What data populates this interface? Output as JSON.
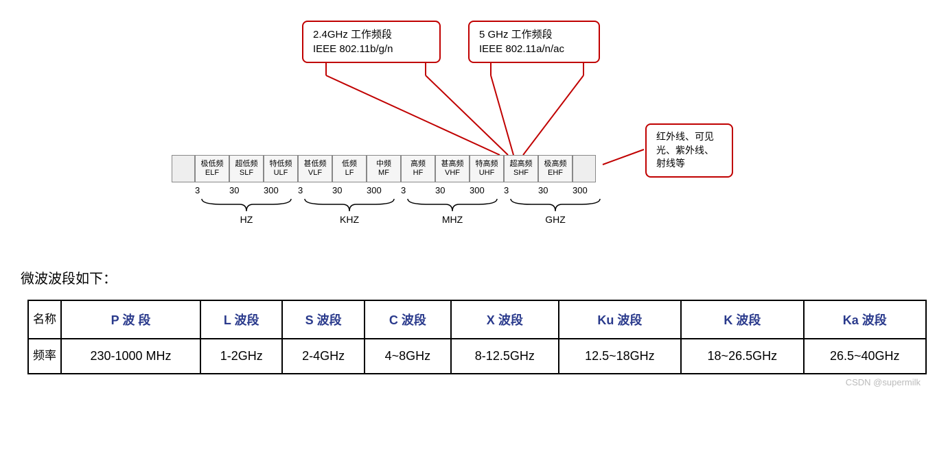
{
  "diagram": {
    "callout_24": {
      "line1": "2.4GHz 工作频段",
      "line2": "IEEE 802.11b/g/n"
    },
    "callout_5": {
      "line1": "5 GHz 工作频段",
      "line2": "IEEE 802.11a/n/ac"
    },
    "callout_right": {
      "text": "红外线、可见光、紫外线、射线等"
    },
    "bands": [
      {
        "cn": "",
        "en": ""
      },
      {
        "cn": "极低频",
        "en": "ELF"
      },
      {
        "cn": "超低频",
        "en": "SLF"
      },
      {
        "cn": "特低频",
        "en": "ULF"
      },
      {
        "cn": "甚低频",
        "en": "VLF"
      },
      {
        "cn": "低频",
        "en": "LF"
      },
      {
        "cn": "中频",
        "en": "MF"
      },
      {
        "cn": "高频",
        "en": "HF"
      },
      {
        "cn": "甚高频",
        "en": "VHF"
      },
      {
        "cn": "特高频",
        "en": "UHF"
      },
      {
        "cn": "超高频",
        "en": "SHF"
      },
      {
        "cn": "极高频",
        "en": "EHF"
      },
      {
        "cn": "",
        "en": ""
      }
    ],
    "ticks": [
      "3",
      "30",
      "300",
      "3",
      "30",
      "300",
      "3",
      "30",
      "300",
      "3",
      "30",
      "300"
    ],
    "units": [
      "HZ",
      "KHZ",
      "MHZ",
      "GHZ"
    ],
    "line_color": "#c00000",
    "cell_bg": "#f5f5f5",
    "cell_border": "#888888"
  },
  "heading": "微波波段如下：",
  "table": {
    "row_name": "名称",
    "row_freq": "频率",
    "header_color": "#2a3a8c",
    "bands": [
      {
        "letter": "P",
        "suffix": " 波  段",
        "freq": "230-1000 MHz"
      },
      {
        "letter": "L",
        "suffix": " 波段",
        "freq": "1-2GHz"
      },
      {
        "letter": "S",
        "suffix": " 波段",
        "freq": "2-4GHz"
      },
      {
        "letter": "C",
        "suffix": " 波段",
        "freq": "4~8GHz"
      },
      {
        "letter": "X",
        "suffix": " 波段",
        "freq": "8-12.5GHz"
      },
      {
        "letter": "Ku",
        "suffix": " 波段",
        "freq": "12.5~18GHz"
      },
      {
        "letter": "K",
        "suffix": " 波段",
        "freq": "18~26.5GHz"
      },
      {
        "letter": "Ka",
        "suffix": " 波段",
        "freq": "26.5~40GHz"
      }
    ]
  },
  "watermark": "CSDN @supermilk"
}
